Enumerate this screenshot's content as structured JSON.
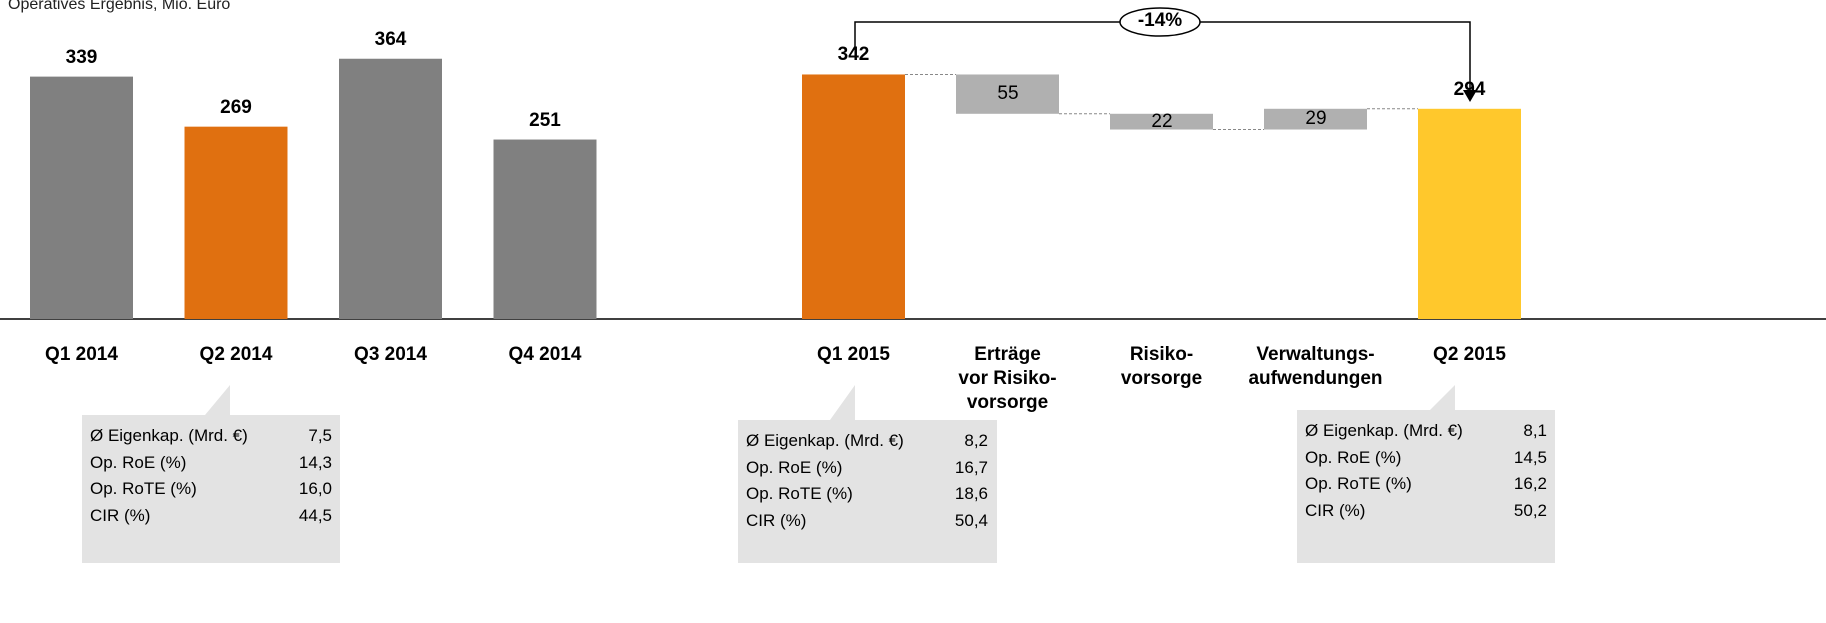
{
  "chart_data": [
    {
      "type": "bar",
      "title": "Operatives Ergebnis, Mio. Euro",
      "categories": [
        "Q1 2014",
        "Q2 2014",
        "Q3 2014",
        "Q4 2014"
      ],
      "values": [
        339,
        269,
        364,
        251
      ],
      "colors": [
        "#808080",
        "#e07010",
        "#808080",
        "#808080"
      ]
    },
    {
      "type": "waterfall",
      "categories": [
        "Q1 2015",
        "Erträge\nvor Risiko-\nvorsorge",
        "Risiko-\nvorsorge",
        "Verwaltungs-\naufwendungen",
        "Q2 2015"
      ],
      "values": [
        342,
        -55,
        -22,
        29,
        294
      ],
      "value_labels": [
        "342",
        "55",
        "22",
        "29",
        "294"
      ],
      "colors": [
        "#e07010",
        "#b0b0b0",
        "#b0b0b0",
        "#b0b0b0",
        "#ffc82c"
      ],
      "annotation": "-14%"
    }
  ],
  "callouts": [
    {
      "rows": [
        [
          "Ø Eigenkap. (Mrd. €)",
          "7,5"
        ],
        [
          "Op. RoE (%)",
          "14,3"
        ],
        [
          "Op. RoTE (%)",
          "16,0"
        ],
        [
          "CIR (%)",
          "44,5"
        ]
      ]
    },
    {
      "rows": [
        [
          "Ø Eigenkap. (Mrd. €)",
          "8,2"
        ],
        [
          "Op. RoE (%)",
          "16,7"
        ],
        [
          "Op. RoTE (%)",
          "18,6"
        ],
        [
          "CIR (%)",
          "50,4"
        ]
      ]
    },
    {
      "rows": [
        [
          "Ø Eigenkap. (Mrd. €)",
          "8,1"
        ],
        [
          "Op. RoE (%)",
          "14,5"
        ],
        [
          "Op. RoTE (%)",
          "16,2"
        ],
        [
          "CIR (%)",
          "50,2"
        ]
      ]
    }
  ]
}
